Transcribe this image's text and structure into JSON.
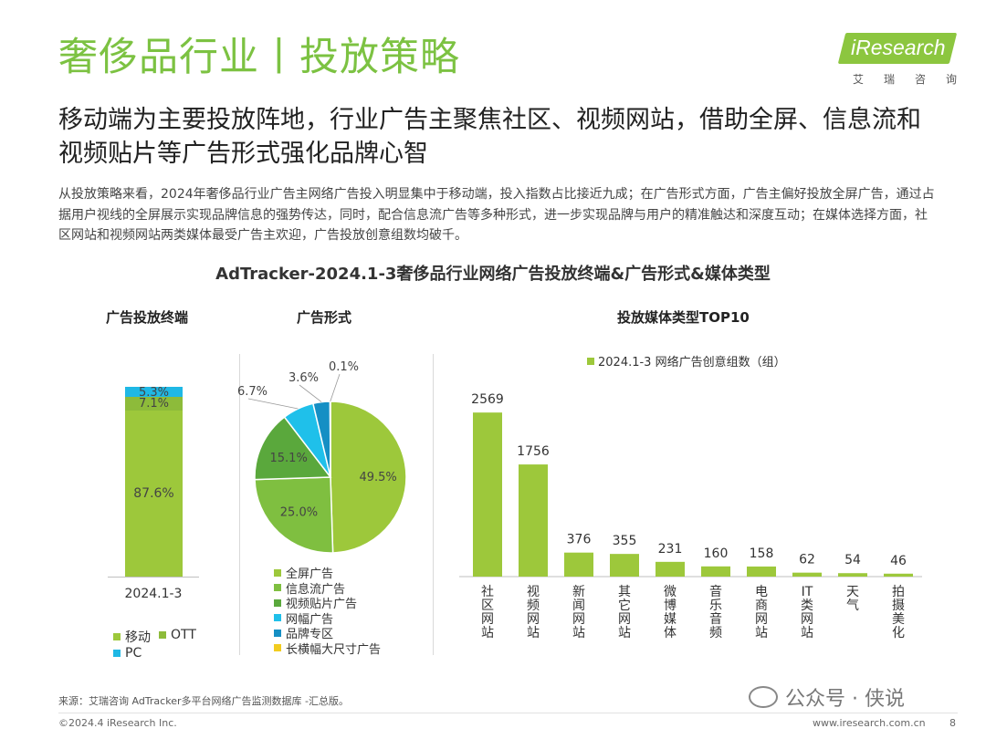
{
  "title": "奢侈品行业丨投放策略",
  "logo": {
    "brand": "iResearch",
    "cn": "艾瑞咨询"
  },
  "subtitle": "移动端为主要投放阵地，行业广告主聚焦社区、视频网站，借助全屏、信息流和视频贴片等广告形式强化品牌心智",
  "body": "从投放策略来看，2024年奢侈品行业广告主网络广告投入明显集中于移动端，投入指数占比接近九成；在广告形式方面，广告主偏好投放全屏广告，通过占据用户视线的全屏展示实现品牌信息的强势传达，同时，配合信息流广告等多种形式，进一步实现品牌与用户的精准触达和深度互动；在媒体选择方面，社区网站和视频网站两类媒体最受广告主欢迎，广告投放创意组数均破千。",
  "chart_title": "AdTracker-2024.1-3奢侈品行业网络广告投放终端&广告形式&媒体类型",
  "chart_data": [
    {
      "type": "bar",
      "stacked": true,
      "title": "广告投放终端",
      "categories": [
        "2024.1-3"
      ],
      "series": [
        {
          "name": "移动",
          "values": [
            87.6
          ],
          "label": "87.6%",
          "color": "#9dc83b"
        },
        {
          "name": "OTT",
          "values": [
            7.1
          ],
          "label": "7.1%",
          "color": "#8dbb3a"
        },
        {
          "name": "PC",
          "values": [
            5.3
          ],
          "label": "5.3%",
          "color": "#1fb8e5"
        }
      ],
      "ylim": [
        0,
        100
      ]
    },
    {
      "type": "pie",
      "title": "广告形式",
      "slices": [
        {
          "name": "全屏广告",
          "value": 49.5,
          "label": "49.5%",
          "color": "#9dc83b"
        },
        {
          "name": "信息流广告",
          "value": 25.0,
          "label": "25.0%",
          "color": "#7fbf40"
        },
        {
          "name": "视频贴片广告",
          "value": 15.1,
          "label": "15.1%",
          "color": "#5aa83c"
        },
        {
          "name": "网幅广告",
          "value": 6.7,
          "label": "6.7%",
          "color": "#1fc0ea"
        },
        {
          "name": "品牌专区",
          "value": 3.6,
          "label": "3.6%",
          "color": "#158fc4"
        },
        {
          "name": "长横幅大尺寸广告",
          "value": 0.1,
          "label": "0.1%",
          "color": "#f2cc1f"
        }
      ]
    },
    {
      "type": "bar",
      "title": "投放媒体类型TOP10",
      "legend": "2024.1-3 网络广告创意组数（组）",
      "color": "#9dc83b",
      "categories": [
        "社区网站",
        "视频网站",
        "新闻网站",
        "其它网站",
        "微博媒体",
        "音乐音频",
        "电商网站",
        "IT类网站",
        "天气",
        "拍摄美化"
      ],
      "values": [
        2569,
        1756,
        376,
        355,
        231,
        160,
        158,
        62,
        54,
        46
      ],
      "ylim": [
        0,
        2800
      ]
    }
  ],
  "source": "来源：艾瑞咨询 AdTracker多平台网络广告监测数据库 -汇总版。",
  "watermark": "公众号 · 侠说",
  "copyright": "©2024.4 iResearch Inc.",
  "site": "www.iresearch.com.cn",
  "page_number": "8"
}
